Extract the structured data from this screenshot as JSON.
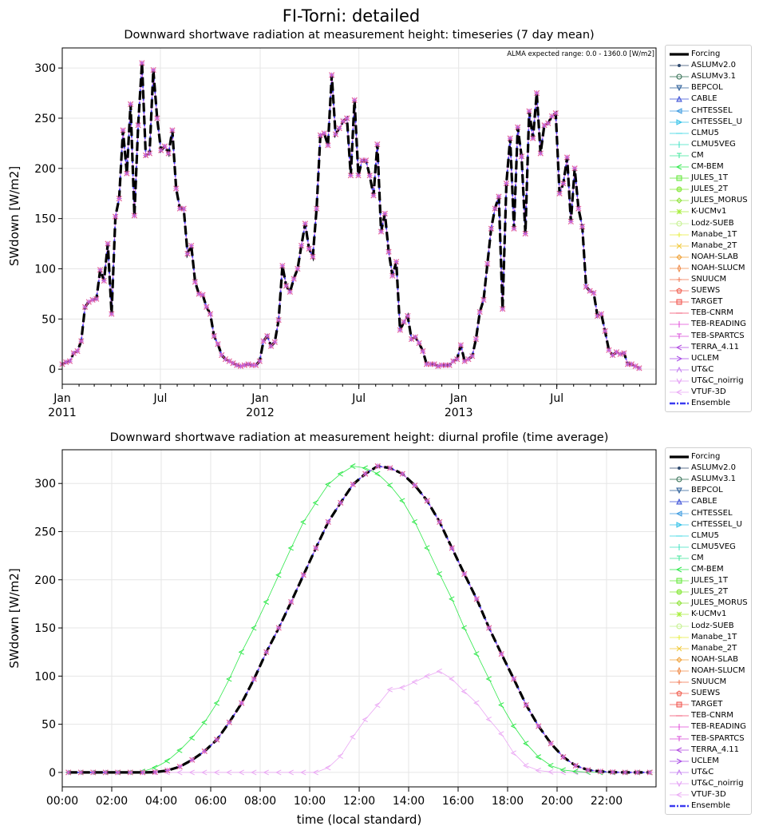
{
  "suptitle": "FI-Torni: detailed",
  "legend_entries": [
    {
      "name": "Forcing",
      "color": "#000000",
      "marker": "line"
    },
    {
      "name": "ASLUMv2.0",
      "color": "#2f4a6e",
      "marker": "dot"
    },
    {
      "name": "ASLUMv3.1",
      "color": "#2e6b4f",
      "marker": "circle"
    },
    {
      "name": "BEPCOL",
      "color": "#2d5f99",
      "marker": "tri-down"
    },
    {
      "name": "CABLE",
      "color": "#3a4fd6",
      "marker": "tri-up"
    },
    {
      "name": "CHTESSEL",
      "color": "#3b9ae0",
      "marker": "tri-left"
    },
    {
      "name": "CHTESSEL_U",
      "color": "#31c1e8",
      "marker": "tri-right"
    },
    {
      "name": "CLMU5",
      "color": "#2fd4e0",
      "marker": "dash"
    },
    {
      "name": "CLMU5VEG",
      "color": "#3ee0c0",
      "marker": "vline"
    },
    {
      "name": "CM",
      "color": "#3ee69a",
      "marker": "tick"
    },
    {
      "name": "CM-BEM",
      "color": "#2ee84a",
      "marker": "lt"
    },
    {
      "name": "JULES_1T",
      "color": "#62e838",
      "marker": "square"
    },
    {
      "name": "JULES_2T",
      "color": "#86e83a",
      "marker": "octagon"
    },
    {
      "name": "JULES_MORUS",
      "color": "#8fe33a",
      "marker": "diamond"
    },
    {
      "name": "K-UCMv1",
      "color": "#a6ee3a",
      "marker": "star"
    },
    {
      "name": "Lodz-SUEB",
      "color": "#c2f08a",
      "marker": "hex"
    },
    {
      "name": "Manabe_1T",
      "color": "#e6ee3a",
      "marker": "plus"
    },
    {
      "name": "Manabe_2T",
      "color": "#f0c836",
      "marker": "x"
    },
    {
      "name": "NOAH-SLAB",
      "color": "#f0a23a",
      "marker": "diamond"
    },
    {
      "name": "NOAH-SLUCM",
      "color": "#f08c4a",
      "marker": "thin-diamond"
    },
    {
      "name": "SNUUCM",
      "color": "#f0704a",
      "marker": "plus"
    },
    {
      "name": "SUEWS",
      "color": "#f05a4a",
      "marker": "pentagon"
    },
    {
      "name": "TARGET",
      "color": "#f0504a",
      "marker": "square"
    },
    {
      "name": "TEB-CNRM",
      "color": "#f04a6a",
      "marker": "dash"
    },
    {
      "name": "TEB-READING",
      "color": "#e04ad8",
      "marker": "vline"
    },
    {
      "name": "TEB-SPARTCS",
      "color": "#d84ad8",
      "marker": "tick"
    },
    {
      "name": "TERRA_4.11",
      "color": "#b04ae0",
      "marker": "lt"
    },
    {
      "name": "UCLEM",
      "color": "#a84ae6",
      "marker": "gt"
    },
    {
      "name": "UT&C",
      "color": "#c27af0",
      "marker": "caret-up"
    },
    {
      "name": "UT&C_noirrig",
      "color": "#e29af4",
      "marker": "caret-down"
    },
    {
      "name": "VTUF-3D",
      "color": "#eaa8f4",
      "marker": "lt"
    },
    {
      "name": "Ensemble",
      "color": "#3a3af0",
      "marker": "dashdot"
    }
  ],
  "chart_data": [
    {
      "type": "line",
      "title": "Downward shortwave radiation at measurement height: timeseries (7 day mean)",
      "xlabel": "",
      "ylabel": "SWdown [W/m2]",
      "annotation": "ALMA expected range: 0.0 - 1360.0 [W/m2]",
      "x_start": "2011-01-01",
      "x_step_days": 7,
      "xlim": [
        "2011-01-01",
        "2013-12-31"
      ],
      "ylim": [
        -15,
        320
      ],
      "yticks": [
        0,
        50,
        100,
        150,
        200,
        250,
        300
      ],
      "xticks": [
        {
          "label": "Jan",
          "sub": "2011",
          "x": "2011-01-01"
        },
        {
          "label": "Jul",
          "sub": "",
          "x": "2011-07-01"
        },
        {
          "label": "Jan",
          "sub": "2012",
          "x": "2012-01-01"
        },
        {
          "label": "Jul",
          "sub": "",
          "x": "2012-07-01"
        },
        {
          "label": "Jan",
          "sub": "2013",
          "x": "2013-01-01"
        },
        {
          "label": "Jul",
          "sub": "",
          "x": "2013-07-01"
        }
      ],
      "grid": true,
      "legend": "right, outside",
      "series": [
        {
          "name": "Forcing",
          "values": [
            5,
            7,
            8,
            16,
            18,
            28,
            62,
            67,
            69,
            70,
            99,
            88,
            125,
            55,
            152,
            170,
            238,
            195,
            264,
            153,
            243,
            305,
            213,
            215,
            298,
            250,
            218,
            222,
            215,
            238,
            180,
            160,
            160,
            115,
            123,
            87,
            75,
            74,
            62,
            55,
            33,
            25,
            14,
            10,
            8,
            6,
            4,
            3,
            4,
            5,
            4,
            4,
            8,
            28,
            33,
            23,
            27,
            49,
            103,
            83,
            77,
            90,
            100,
            123,
            145,
            120,
            112,
            160,
            233,
            235,
            223,
            293,
            234,
            240,
            247,
            250,
            193,
            268,
            193,
            208,
            208,
            193,
            173,
            224,
            137,
            155,
            117,
            93,
            107,
            39,
            47,
            53,
            30,
            32,
            26,
            18,
            5,
            5,
            5,
            3,
            4,
            4,
            4,
            8,
            10,
            24,
            8,
            10,
            13,
            30,
            57,
            69,
            105,
            140,
            160,
            172,
            60,
            185,
            230,
            140,
            241,
            212,
            135,
            257,
            230,
            275,
            215,
            243,
            245,
            252,
            255,
            175,
            185,
            211,
            147,
            200,
            160,
            142,
            82,
            78,
            76,
            53,
            55,
            38,
            19,
            14,
            17,
            15,
            16,
            5,
            5,
            3,
            1
          ]
        }
      ]
    },
    {
      "type": "line",
      "title": "Downward shortwave radiation at measurement height: diurnal profile (time average)",
      "xlabel": "time (local standard)",
      "ylabel": "SWdown [W/m2]",
      "x_start": "00:00",
      "x_step_minutes": 30,
      "xlim": [
        "00:00",
        "24:00"
      ],
      "ylim": [
        -15,
        335
      ],
      "yticks": [
        0,
        50,
        100,
        150,
        200,
        250,
        300
      ],
      "xticks": [
        "00:00",
        "02:00",
        "04:00",
        "06:00",
        "08:00",
        "10:00",
        "12:00",
        "14:00",
        "16:00",
        "18:00",
        "20:00",
        "22:00"
      ],
      "grid": true,
      "legend": "right, outside",
      "series": [
        {
          "name": "Forcing",
          "values": [
            0,
            0,
            0,
            0,
            0,
            0,
            0,
            0.3,
            2,
            6,
            13,
            22,
            34,
            52,
            72,
            97,
            125,
            150,
            177,
            205,
            233,
            260,
            280,
            299,
            310,
            318,
            316,
            310,
            298,
            282,
            260,
            233,
            206,
            180,
            150,
            123,
            97,
            70,
            48,
            30,
            16,
            7,
            2.5,
            1,
            0.3,
            0,
            0,
            0
          ]
        },
        {
          "name": "CM-BEM",
          "values": [
            0,
            0,
            0,
            0,
            0,
            0,
            1,
            5,
            12,
            23,
            36,
            52,
            72,
            97,
            125,
            150,
            177,
            205,
            233,
            260,
            280,
            299,
            310,
            318,
            316,
            310,
            298,
            282,
            260,
            233,
            206,
            180,
            150,
            123,
            97,
            70,
            48,
            30,
            16,
            7,
            2.5,
            1,
            0.3,
            0,
            0,
            0,
            0,
            0
          ]
        },
        {
          "name": "VTUF-3D",
          "values": [
            0,
            0,
            0,
            0,
            0,
            0,
            0,
            0,
            0,
            0,
            0,
            0,
            0,
            0,
            0,
            0,
            0,
            0,
            0,
            0,
            0,
            5,
            17,
            37,
            55,
            70,
            86,
            88,
            94,
            100,
            105,
            97,
            84,
            72,
            55,
            40,
            20,
            7,
            2,
            0.5,
            0,
            0,
            0,
            0,
            0,
            0,
            0,
            0
          ]
        }
      ]
    }
  ]
}
